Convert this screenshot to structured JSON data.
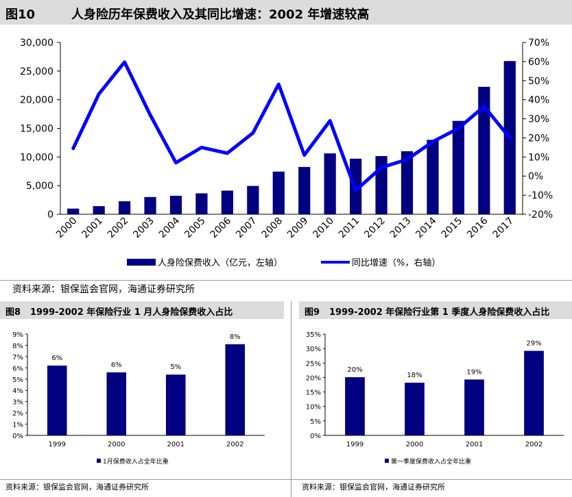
{
  "fig10": {
    "number": "图10",
    "title": "人身险历年保费收入及其同比增速：2002 年增速较高",
    "source": "资料来源：银保监会官网，海通证券研究所"
  },
  "fig8": {
    "number": "图8",
    "title": "1999-2002 年保险行业 1 月人身险保费收入占比",
    "source": "资料来源：银保监会官网，海通证券研究所"
  },
  "fig9": {
    "number": "图9",
    "title": "1999-2002 年保险行业第 1 季度人身险保费收入占比",
    "source": "资料来源：银保监会官网，海通证券研究所"
  },
  "colors": {
    "bar": "#000080",
    "line": "#0000ff",
    "header_bg": "#dcdcdc"
  },
  "chart_data": [
    {
      "type": "bar+line",
      "categories": [
        "2000",
        "2001",
        "2002",
        "2003",
        "2004",
        "2005",
        "2006",
        "2007",
        "2008",
        "2009",
        "2010",
        "2011",
        "2012",
        "2013",
        "2014",
        "2015",
        "2016",
        "2017"
      ],
      "series": [
        {
          "name": "人身险保费收入（亿元，左轴）",
          "type": "bar",
          "axis": "left",
          "values": [
            990,
            1420,
            2270,
            3010,
            3230,
            3650,
            4130,
            4950,
            7450,
            8260,
            10630,
            9700,
            10160,
            11010,
            13000,
            16300,
            22250,
            26750
          ]
        },
        {
          "name": "同比增速（%，右轴）",
          "type": "line",
          "axis": "right",
          "values": [
            14.5,
            43,
            59.7,
            32,
            7,
            15,
            12,
            22.6,
            48.1,
            11,
            29,
            -7.5,
            4.5,
            8.7,
            18,
            25,
            36.5,
            20
          ]
        }
      ],
      "ylim_left": [
        0,
        30000
      ],
      "ylim_right": [
        -20,
        70
      ],
      "yticks_left": [
        "0",
        "5,000",
        "10,000",
        "15,000",
        "20,000",
        "25,000",
        "30,000"
      ],
      "yticks_right": [
        "-20%",
        "-10%",
        "0%",
        "10%",
        "20%",
        "30%",
        "40%",
        "50%",
        "60%",
        "70%"
      ],
      "legend": [
        "人身险保费收入（亿元，左轴）",
        "同比增速（%，右轴）"
      ],
      "legend_position": "bottom"
    },
    {
      "type": "bar",
      "categories": [
        "1999",
        "2000",
        "2001",
        "2002"
      ],
      "values": [
        6.2,
        5.6,
        5.4,
        8.1
      ],
      "data_labels": [
        "6%",
        "6%",
        "5%",
        "8%"
      ],
      "ylim": [
        0,
        9
      ],
      "yticks": [
        "0%",
        "1%",
        "2%",
        "3%",
        "4%",
        "5%",
        "6%",
        "7%",
        "8%",
        "9%"
      ],
      "legend": [
        "1月保费收入占全年比重"
      ],
      "legend_position": "bottom"
    },
    {
      "type": "bar",
      "categories": [
        "1999",
        "2000",
        "2001",
        "2002"
      ],
      "values": [
        20.1,
        18.2,
        19.3,
        29.2
      ],
      "data_labels": [
        "20%",
        "18%",
        "19%",
        "29%"
      ],
      "ylim": [
        0,
        35
      ],
      "yticks": [
        "0%",
        "5%",
        "10%",
        "15%",
        "20%",
        "25%",
        "30%",
        "35%"
      ],
      "legend": [
        "第一季度保费收入占全年比重"
      ],
      "legend_position": "bottom"
    }
  ]
}
